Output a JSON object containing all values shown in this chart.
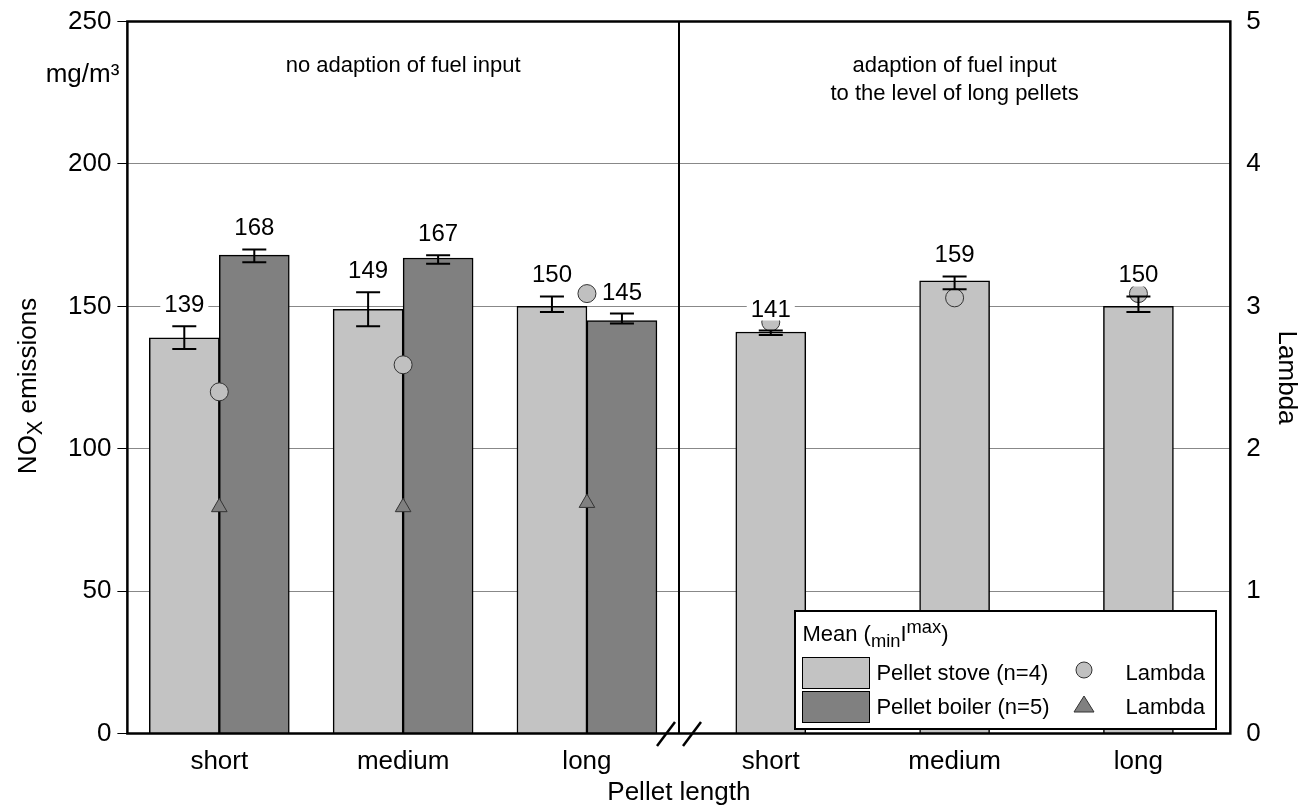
{
  "chart_data": {
    "type": "bar",
    "xlabel": "Pellet length",
    "ylabel": "NO$_{X}$ emissions",
    "y2label": "Lambda",
    "legend_title": "Mean ($_{min}$I$^{max}$)",
    "annotations": [
      "mg/m³",
      "no adaption of fuel input",
      "adaption of fuel input\nto the level of long pellets"
    ],
    "categories": [
      "short",
      "medium",
      "long",
      "short",
      "medium",
      "long"
    ],
    "series": [
      {
        "name": "Pellet stove (n=4)",
        "color": "#c3c3c3",
        "values": [
          139,
          149,
          150,
          141,
          159,
          150
        ],
        "value_labels": [
          "139",
          "149",
          "150",
          "141",
          "159",
          "150"
        ],
        "errors": [
          [
            135,
            143
          ],
          [
            143,
            155
          ],
          [
            148,
            153.5
          ],
          [
            140,
            141.5
          ],
          [
            156,
            160.5
          ],
          [
            148,
            153.5
          ]
        ]
      },
      {
        "name": "Pellet boiler (n=5)",
        "color": "#808080",
        "values": [
          168,
          167,
          145,
          null,
          null,
          null
        ],
        "value_labels": [
          "168",
          "167",
          "145",
          null,
          null,
          null
        ],
        "errors": [
          [
            165.5,
            170
          ],
          [
            165,
            168
          ],
          [
            144,
            147.5
          ],
          null,
          null,
          null
        ]
      },
      {
        "name": "Lambda",
        "type": "scatter",
        "axis": "y2",
        "marker": "circle",
        "color": "#c0c0c0",
        "values": [
          2.4,
          2.59,
          3.09,
          2.89,
          3.06,
          3.09
        ]
      },
      {
        "name": "Lambda",
        "type": "scatter",
        "axis": "y2",
        "marker": "triangle",
        "color": "#808080",
        "values": [
          1.59,
          1.59,
          1.62,
          null,
          null,
          null
        ]
      }
    ],
    "ylim": [
      0,
      250
    ],
    "yticks": [
      0,
      50,
      100,
      150,
      200,
      250
    ],
    "y2lim": [
      0,
      5
    ],
    "y2ticks": [
      0,
      1,
      2,
      3,
      4,
      5
    ],
    "grid": "y",
    "legend": "bottom right"
  }
}
